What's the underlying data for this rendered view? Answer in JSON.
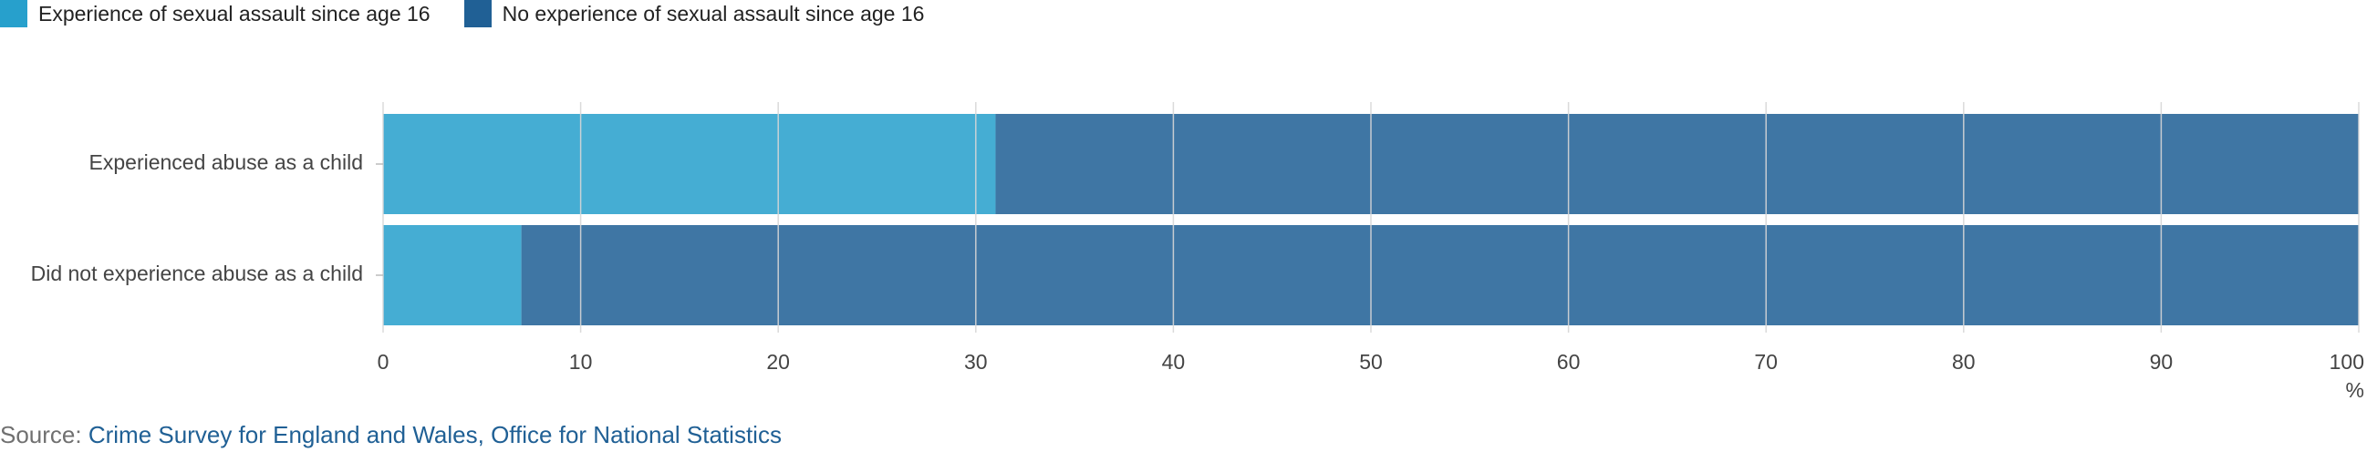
{
  "chart_data": {
    "type": "bar",
    "orientation": "horizontal",
    "stacked": true,
    "categories": [
      "Experienced abuse as a child",
      "Did not experience abuse as a child"
    ],
    "series": [
      {
        "name": "Experience of sexual assault since age 16",
        "color": "#27a0cc",
        "values": [
          31,
          7
        ]
      },
      {
        "name": "No experience of sexual assault since age 16",
        "color": "#206095",
        "values": [
          69,
          93
        ]
      }
    ],
    "xlim": [
      0,
      100
    ],
    "xticks": [
      0,
      10,
      20,
      30,
      40,
      50,
      60,
      70,
      80,
      90,
      100
    ],
    "xunit": "%",
    "grid": true,
    "legend_position": "top-left",
    "title": "",
    "xlabel": "",
    "ylabel": ""
  },
  "source": {
    "label": "Source:",
    "text": "Crime Survey for England and Wales, Office for National Statistics"
  }
}
